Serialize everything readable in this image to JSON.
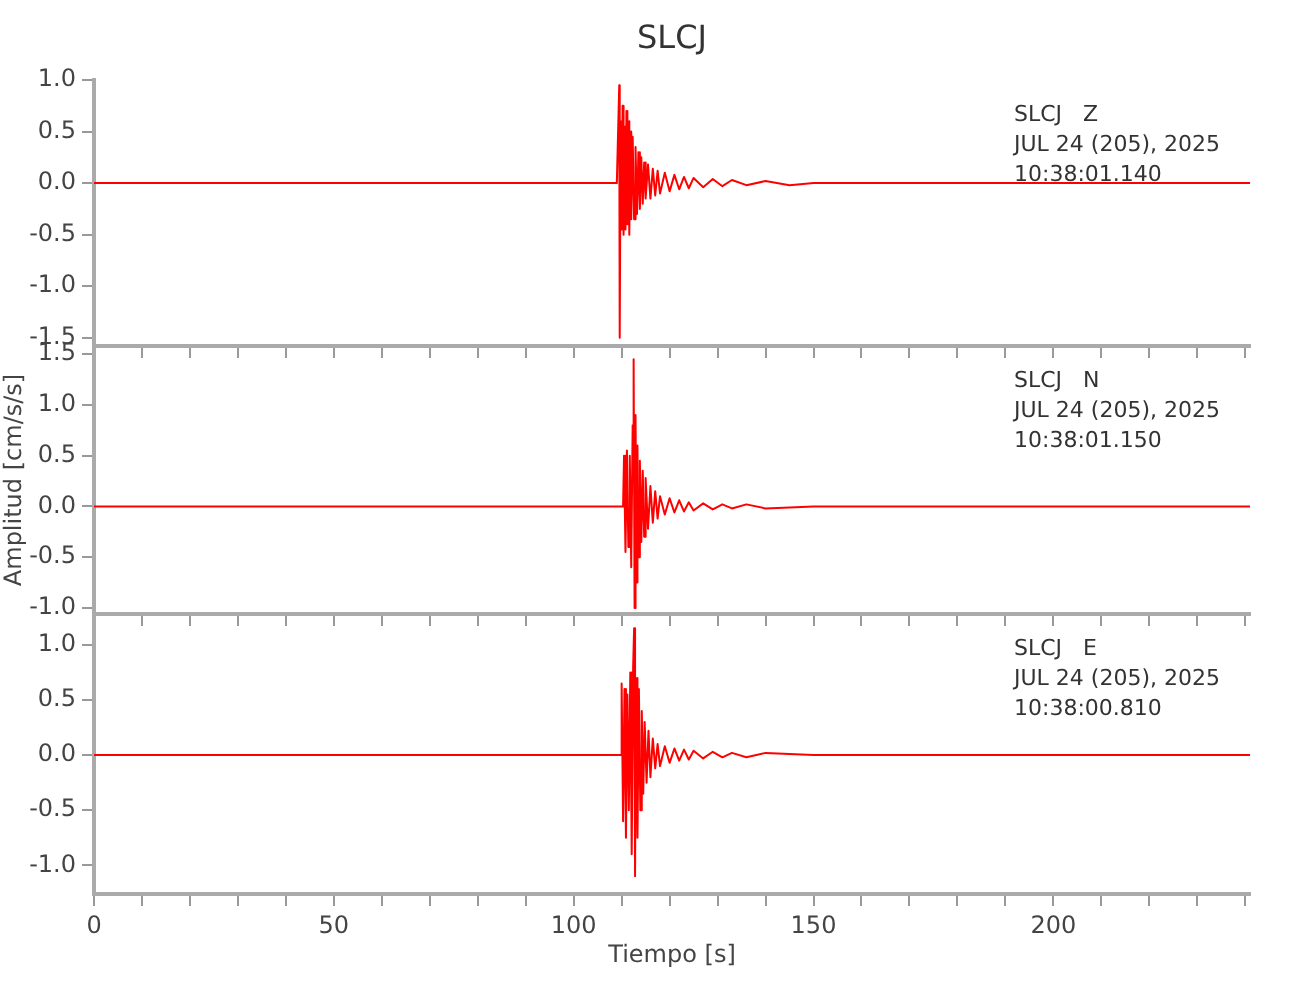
{
  "chart_data": [
    {
      "type": "line",
      "title": "SLCJ",
      "annotations": [
        "SLCJ   Z",
        "JUL 24 (205), 2025",
        "10:38:01.140"
      ],
      "tick_labels": "y",
      "grid": false,
      "legend": false,
      "marker": "none",
      "line_style": "solid",
      "xlim": [
        0,
        241
      ],
      "xticks": [
        0,
        {
          "value": 10,
          "label": null
        },
        {
          "value": 20,
          "label": null
        },
        {
          "value": 30,
          "label": null
        },
        {
          "value": 40,
          "label": null
        },
        50,
        {
          "value": 60,
          "label": null
        },
        {
          "value": 70,
          "label": null
        },
        {
          "value": 80,
          "label": null
        },
        {
          "value": 90,
          "label": null
        },
        100,
        {
          "value": 110,
          "label": null
        },
        {
          "value": 120,
          "label": null
        },
        {
          "value": 130,
          "label": null
        },
        {
          "value": 140,
          "label": null
        },
        150,
        {
          "value": 160,
          "label": null
        },
        {
          "value": 170,
          "label": null
        },
        {
          "value": 180,
          "label": null
        },
        {
          "value": 190,
          "label": null
        },
        200,
        {
          "value": 210,
          "label": null
        },
        {
          "value": 220,
          "label": null
        },
        {
          "value": 230,
          "label": null
        },
        {
          "value": 240,
          "label": null
        }
      ],
      "ylim": [
        -1.58,
        1.0
      ],
      "yticks": [
        {
          "value": -1.5,
          "label": "-1.5"
        },
        {
          "value": -1,
          "label": "-1.0"
        },
        {
          "value": -0.5,
          "label": "-0.5"
        },
        {
          "value": 0,
          "label": "0.0"
        },
        {
          "value": 0.5,
          "label": "0.5"
        },
        {
          "value": 1,
          "label": "1.0"
        }
      ],
      "series": [
        {
          "color": "#ff0000",
          "x": [
            0,
            10,
            20,
            30,
            40,
            50,
            60,
            70,
            80,
            90,
            100,
            105,
            109,
            109.5,
            109.6,
            109.8,
            110.0,
            110.2,
            110.4,
            110.6,
            110.8,
            111.0,
            111.2,
            111.4,
            111.6,
            111.8,
            112.0,
            112.3,
            112.6,
            112.9,
            113.2,
            113.5,
            113.8,
            114.1,
            114.4,
            114.7,
            115,
            115.5,
            116,
            116.5,
            117,
            117.5,
            118,
            119,
            120,
            121,
            122,
            123,
            124,
            125,
            127,
            129,
            131,
            133,
            136,
            140,
            145,
            150,
            160,
            170,
            180,
            190,
            200,
            210,
            220,
            230,
            241
          ],
          "values": [
            0,
            0,
            0,
            0,
            0,
            0,
            0,
            0,
            0,
            0,
            0,
            0,
            0,
            0.95,
            -1.5,
            0.6,
            -0.45,
            0.75,
            -0.5,
            0.55,
            -0.45,
            0.7,
            -0.4,
            0.6,
            -0.5,
            0.5,
            -0.35,
            0.45,
            -0.35,
            0.35,
            -0.3,
            0.3,
            -0.25,
            0.25,
            -0.2,
            0.2,
            -0.15,
            0.18,
            -0.15,
            0.14,
            -0.12,
            0.12,
            -0.1,
            0.1,
            -0.08,
            0.08,
            -0.06,
            0.06,
            -0.05,
            0.05,
            -0.04,
            0.04,
            -0.03,
            0.03,
            -0.02,
            0.02,
            -0.02,
            0,
            0,
            0,
            0,
            0,
            0,
            0,
            0,
            0,
            0
          ]
        }
      ]
    },
    {
      "type": "line",
      "ylabel": "Amplitud [cm/s/s]",
      "annotations": [
        "SLCJ   N",
        "JUL 24 (205), 2025",
        "10:38:01.150"
      ],
      "tick_labels": "y",
      "grid": false,
      "legend": false,
      "marker": "none",
      "line_style": "solid",
      "xlim": [
        0,
        241
      ],
      "xticks": [
        0,
        {
          "value": 10,
          "label": null
        },
        {
          "value": 20,
          "label": null
        },
        {
          "value": 30,
          "label": null
        },
        {
          "value": 40,
          "label": null
        },
        50,
        {
          "value": 60,
          "label": null
        },
        {
          "value": 70,
          "label": null
        },
        {
          "value": 80,
          "label": null
        },
        {
          "value": 90,
          "label": null
        },
        100,
        {
          "value": 110,
          "label": null
        },
        {
          "value": 120,
          "label": null
        },
        {
          "value": 130,
          "label": null
        },
        {
          "value": 140,
          "label": null
        },
        150,
        {
          "value": 160,
          "label": null
        },
        {
          "value": 170,
          "label": null
        },
        {
          "value": 180,
          "label": null
        },
        {
          "value": 190,
          "label": null
        },
        200,
        {
          "value": 210,
          "label": null
        },
        {
          "value": 220,
          "label": null
        },
        {
          "value": 230,
          "label": null
        },
        {
          "value": 240,
          "label": null
        }
      ],
      "ylim": [
        -1.06,
        1.58
      ],
      "yticks": [
        {
          "value": -1,
          "label": "-1.0"
        },
        {
          "value": -0.5,
          "label": "-0.5"
        },
        {
          "value": 0,
          "label": "0.0"
        },
        {
          "value": 0.5,
          "label": "0.5"
        },
        {
          "value": 1,
          "label": "1.0"
        },
        {
          "value": 1.5,
          "label": "1.5"
        }
      ],
      "series": [
        {
          "color": "#ff0000",
          "x": [
            0,
            10,
            20,
            30,
            40,
            50,
            60,
            70,
            80,
            90,
            100,
            110.3,
            110.5,
            110.8,
            111.1,
            111.4,
            111.7,
            112.0,
            112.3,
            112.5,
            112.7,
            112.9,
            113.1,
            113.3,
            113.5,
            113.8,
            114.1,
            114.4,
            114.7,
            115,
            115.5,
            116,
            116.5,
            117,
            117.5,
            118,
            119,
            120,
            121,
            122,
            123,
            124,
            125,
            127,
            129,
            131,
            133,
            136,
            140,
            150,
            160,
            170,
            180,
            190,
            200,
            210,
            220,
            230,
            241
          ],
          "values": [
            0,
            0,
            0,
            0,
            0,
            0,
            0,
            0,
            0,
            0,
            0,
            0,
            0.5,
            -0.45,
            0.55,
            -0.4,
            0.5,
            -0.6,
            0.8,
            1.45,
            -1.0,
            0.9,
            -0.75,
            0.6,
            -0.5,
            0.45,
            -0.35,
            0.35,
            -0.3,
            0.28,
            -0.22,
            0.2,
            -0.16,
            0.15,
            -0.12,
            0.1,
            -0.08,
            0.08,
            -0.06,
            0.06,
            -0.05,
            0.04,
            -0.04,
            0.03,
            -0.03,
            0.02,
            -0.02,
            0.02,
            -0.02,
            0,
            0,
            0,
            0,
            0,
            0,
            0,
            0,
            0,
            0
          ]
        }
      ]
    },
    {
      "type": "line",
      "xlabel": "Tiempo [s]",
      "annotations": [
        "SLCJ   E",
        "JUL 24 (205), 2025",
        "10:38:00.810"
      ],
      "grid": false,
      "legend": false,
      "marker": "none",
      "line_style": "solid",
      "xlim": [
        0,
        241
      ],
      "xticks": [
        0,
        {
          "value": 10,
          "label": null
        },
        {
          "value": 20,
          "label": null
        },
        {
          "value": 30,
          "label": null
        },
        {
          "value": 40,
          "label": null
        },
        50,
        {
          "value": 60,
          "label": null
        },
        {
          "value": 70,
          "label": null
        },
        {
          "value": 80,
          "label": null
        },
        {
          "value": 90,
          "label": null
        },
        100,
        {
          "value": 110,
          "label": null
        },
        {
          "value": 120,
          "label": null
        },
        {
          "value": 130,
          "label": null
        },
        {
          "value": 140,
          "label": null
        },
        150,
        {
          "value": 160,
          "label": null
        },
        {
          "value": 170,
          "label": null
        },
        {
          "value": 180,
          "label": null
        },
        {
          "value": 190,
          "label": null
        },
        200,
        {
          "value": 210,
          "label": null
        },
        {
          "value": 220,
          "label": null
        },
        {
          "value": 230,
          "label": null
        },
        {
          "value": 240,
          "label": null
        }
      ],
      "ylim": [
        -1.26,
        1.28
      ],
      "yticks": [
        {
          "value": -1,
          "label": "-1.0"
        },
        {
          "value": -0.5,
          "label": "-0.5"
        },
        {
          "value": 0,
          "label": "0.0"
        },
        {
          "value": 0.5,
          "label": "0.5"
        },
        {
          "value": 1,
          "label": "1.0"
        }
      ],
      "series": [
        {
          "color": "#ff0000",
          "x": [
            0,
            10,
            20,
            30,
            40,
            50,
            60,
            70,
            80,
            90,
            100,
            109.9,
            110,
            110.3,
            110.6,
            110.9,
            111.2,
            111.5,
            111.8,
            112.1,
            112.4,
            112.6,
            112.8,
            113.0,
            113.3,
            113.6,
            113.9,
            114.2,
            114.5,
            114.8,
            115.2,
            115.6,
            116,
            116.5,
            117,
            117.5,
            118,
            119,
            120,
            121,
            122,
            123,
            124,
            125,
            127,
            129,
            131,
            133,
            136,
            140,
            150,
            160,
            170,
            180,
            190,
            200,
            210,
            220,
            230,
            241
          ],
          "values": [
            0,
            0,
            0,
            0,
            0,
            0,
            0,
            0,
            0,
            0,
            0,
            0,
            0.65,
            -0.6,
            0.6,
            -0.75,
            0.55,
            -0.5,
            0.75,
            -0.9,
            0.8,
            1.15,
            -1.1,
            0.7,
            -0.75,
            0.6,
            -0.5,
            0.4,
            -0.35,
            0.3,
            -0.25,
            0.22,
            -0.2,
            0.15,
            -0.12,
            0.1,
            -0.1,
            0.08,
            -0.07,
            0.06,
            -0.05,
            0.05,
            -0.04,
            0.04,
            -0.03,
            0.03,
            -0.02,
            0.02,
            -0.02,
            0.02,
            0,
            0,
            0,
            0,
            0,
            0,
            0,
            0,
            0,
            0
          ]
        }
      ]
    }
  ]
}
